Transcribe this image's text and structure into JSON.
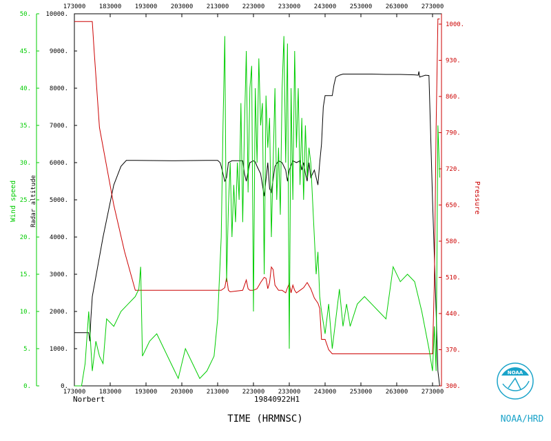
{
  "chart_data": {
    "type": "line",
    "xlabel": "TIME (HRMNSC)",
    "storm_name": "Norbert",
    "flight_id": "19840922H1",
    "logo_text": "NOAA/HRD",
    "x_ticks": [
      "173000",
      "183000",
      "193000",
      "203000",
      "213000",
      "223000",
      "233000",
      "243000",
      "253000",
      "263000",
      "273000"
    ],
    "xlim": [
      173000,
      275500
    ],
    "axes": {
      "wind": {
        "label": "Wind speed",
        "color": "#00cc00",
        "ylim": [
          0,
          50
        ],
        "ticks": [
          "0.",
          "5.",
          "10.",
          "15.",
          "20.",
          "25.",
          "30.",
          "35.",
          "40.",
          "45.",
          "50."
        ]
      },
      "altitude": {
        "label": "Radar altitude",
        "color": "#000000",
        "ylim": [
          0,
          10000
        ],
        "ticks": [
          "0.",
          "1000.",
          "2000.",
          "3000.",
          "4000.",
          "5000.",
          "6000.",
          "7000.",
          "8000.",
          "9000.",
          "10000."
        ]
      },
      "pressure": {
        "label": "Pressure",
        "color": "#cc0000",
        "ylim": [
          300,
          1020
        ],
        "ticks": [
          "300.",
          "370.",
          "440.",
          "510.",
          "580.",
          "650.",
          "720.",
          "790.",
          "860.",
          "930.",
          "1000."
        ]
      }
    },
    "series": [
      {
        "name": "Radar altitude",
        "color": "#000000",
        "axis": "altitude",
        "x": [
          173000,
          177000,
          177300,
          177600,
          178000,
          181000,
          184000,
          186000,
          187500,
          190000,
          200000,
          210000,
          213000,
          213700,
          214000,
          215000,
          215500,
          216000,
          217000,
          220000,
          220500,
          221000,
          222000,
          223000,
          223500,
          224000,
          225000,
          226000,
          227000,
          227500,
          228000,
          229000,
          230000,
          231000,
          232000,
          232500,
          233000,
          234000,
          235000,
          236000,
          236500,
          237000,
          237500,
          238000,
          238500,
          239000,
          240000,
          241000,
          241500,
          242000,
          242500,
          243000,
          244000,
          245000,
          245500,
          246000,
          247000,
          248000,
          249000,
          252000,
          256000,
          260000,
          264000,
          268000,
          269000,
          269200,
          269400,
          271000,
          272000,
          273000,
          274000,
          274500,
          275000
        ],
        "y": [
          1430,
          1430,
          1200,
          1800,
          2400,
          4000,
          5400,
          5900,
          6060,
          6060,
          6050,
          6060,
          6060,
          6000,
          5900,
          5500,
          5600,
          6000,
          6050,
          6050,
          5700,
          5500,
          6000,
          6050,
          6020,
          5900,
          5700,
          5100,
          6000,
          5300,
          5200,
          5900,
          6050,
          6000,
          5800,
          5500,
          5800,
          6050,
          6000,
          6050,
          5800,
          6000,
          5700,
          5500,
          6000,
          5600,
          5800,
          5400,
          6000,
          6500,
          7500,
          7800,
          7800,
          7800,
          8100,
          8300,
          8350,
          8380,
          8380,
          8380,
          8380,
          8370,
          8370,
          8360,
          8350,
          8450,
          8300,
          8350,
          8340,
          5000,
          2000,
          400,
          0
        ]
      },
      {
        "name": "Pressure",
        "color": "#cc0000",
        "axis": "pressure",
        "x": [
          173000,
          178000,
          178500,
          180000,
          184000,
          187000,
          190000,
          200000,
          210000,
          212000,
          214000,
          215000,
          215500,
          216000,
          216500,
          220000,
          221000,
          221500,
          222000,
          223000,
          224000,
          225000,
          226000,
          226500,
          227000,
          227500,
          228000,
          228500,
          229000,
          230000,
          231000,
          232000,
          232500,
          233000,
          233500,
          234000,
          234500,
          235000,
          236000,
          237000,
          238000,
          239000,
          240000,
          241000,
          241500,
          242000,
          243000,
          244000,
          245000,
          246000,
          248000,
          250000,
          270000,
          272000,
          273000,
          273500,
          274000,
          274500,
          275000
        ],
        "y": [
          1005,
          1005,
          950,
          800,
          650,
          560,
          485,
          485,
          485,
          485,
          485,
          490,
          510,
          485,
          482,
          485,
          505,
          488,
          485,
          485,
          488,
          500,
          510,
          508,
          488,
          500,
          530,
          525,
          495,
          485,
          485,
          480,
          490,
          498,
          480,
          495,
          485,
          480,
          485,
          490,
          500,
          488,
          470,
          460,
          450,
          390,
          390,
          370,
          362,
          362,
          362,
          362,
          362,
          362,
          362,
          500,
          800,
          1010,
          1010
        ]
      },
      {
        "name": "Wind speed",
        "color": "#00cc00",
        "axis": "wind",
        "x": [
          173000,
          175000,
          176000,
          177000,
          178000,
          179000,
          180000,
          181000,
          182000,
          184000,
          186000,
          188000,
          190000,
          191000,
          191500,
          192000,
          193000,
          194000,
          196000,
          198000,
          200000,
          202000,
          204000,
          206000,
          208000,
          210000,
          212000,
          213000,
          214000,
          214500,
          215000,
          215500,
          216000,
          216500,
          217000,
          217500,
          218000,
          218500,
          219000,
          219500,
          220000,
          220500,
          221000,
          221500,
          222000,
          222500,
          223000,
          223500,
          224000,
          224500,
          225000,
          225500,
          226000,
          226500,
          227000,
          227500,
          228000,
          228500,
          229000,
          229500,
          230000,
          230500,
          231000,
          231500,
          232000,
          232500,
          233000,
          233500,
          234000,
          234500,
          235000,
          235500,
          236000,
          236500,
          237000,
          237500,
          238000,
          238500,
          239000,
          239500,
          240000,
          240500,
          241000,
          241500,
          242000,
          243000,
          244000,
          245000,
          246000,
          247000,
          248000,
          249000,
          250000,
          252000,
          254000,
          256000,
          258000,
          260000,
          262000,
          264000,
          266000,
          268000,
          270000,
          272000,
          273000,
          273500,
          274000,
          274500,
          275000
        ],
        "y": [
          0,
          0,
          3,
          10,
          2,
          6,
          4,
          3,
          9,
          8,
          10,
          11,
          12,
          13,
          16,
          4,
          5,
          6,
          7,
          5,
          3,
          1,
          5,
          3,
          1,
          2,
          4,
          9,
          20,
          35,
          47,
          14,
          24,
          30,
          20,
          27,
          22,
          30,
          25,
          38,
          22,
          35,
          45,
          26,
          40,
          43,
          10,
          40,
          30,
          44,
          35,
          38,
          15,
          39,
          32,
          36,
          20,
          30,
          40,
          25,
          32,
          23,
          40,
          47,
          30,
          46,
          5,
          40,
          25,
          45,
          32,
          40,
          27,
          36,
          25,
          35,
          28,
          32,
          30,
          25,
          20,
          15,
          18,
          12,
          10,
          7,
          11,
          5,
          9,
          13,
          8,
          11,
          8,
          11,
          12,
          11,
          10,
          9,
          16,
          14,
          15,
          14,
          10,
          5,
          2,
          8,
          2,
          35,
          28
        ]
      }
    ]
  }
}
